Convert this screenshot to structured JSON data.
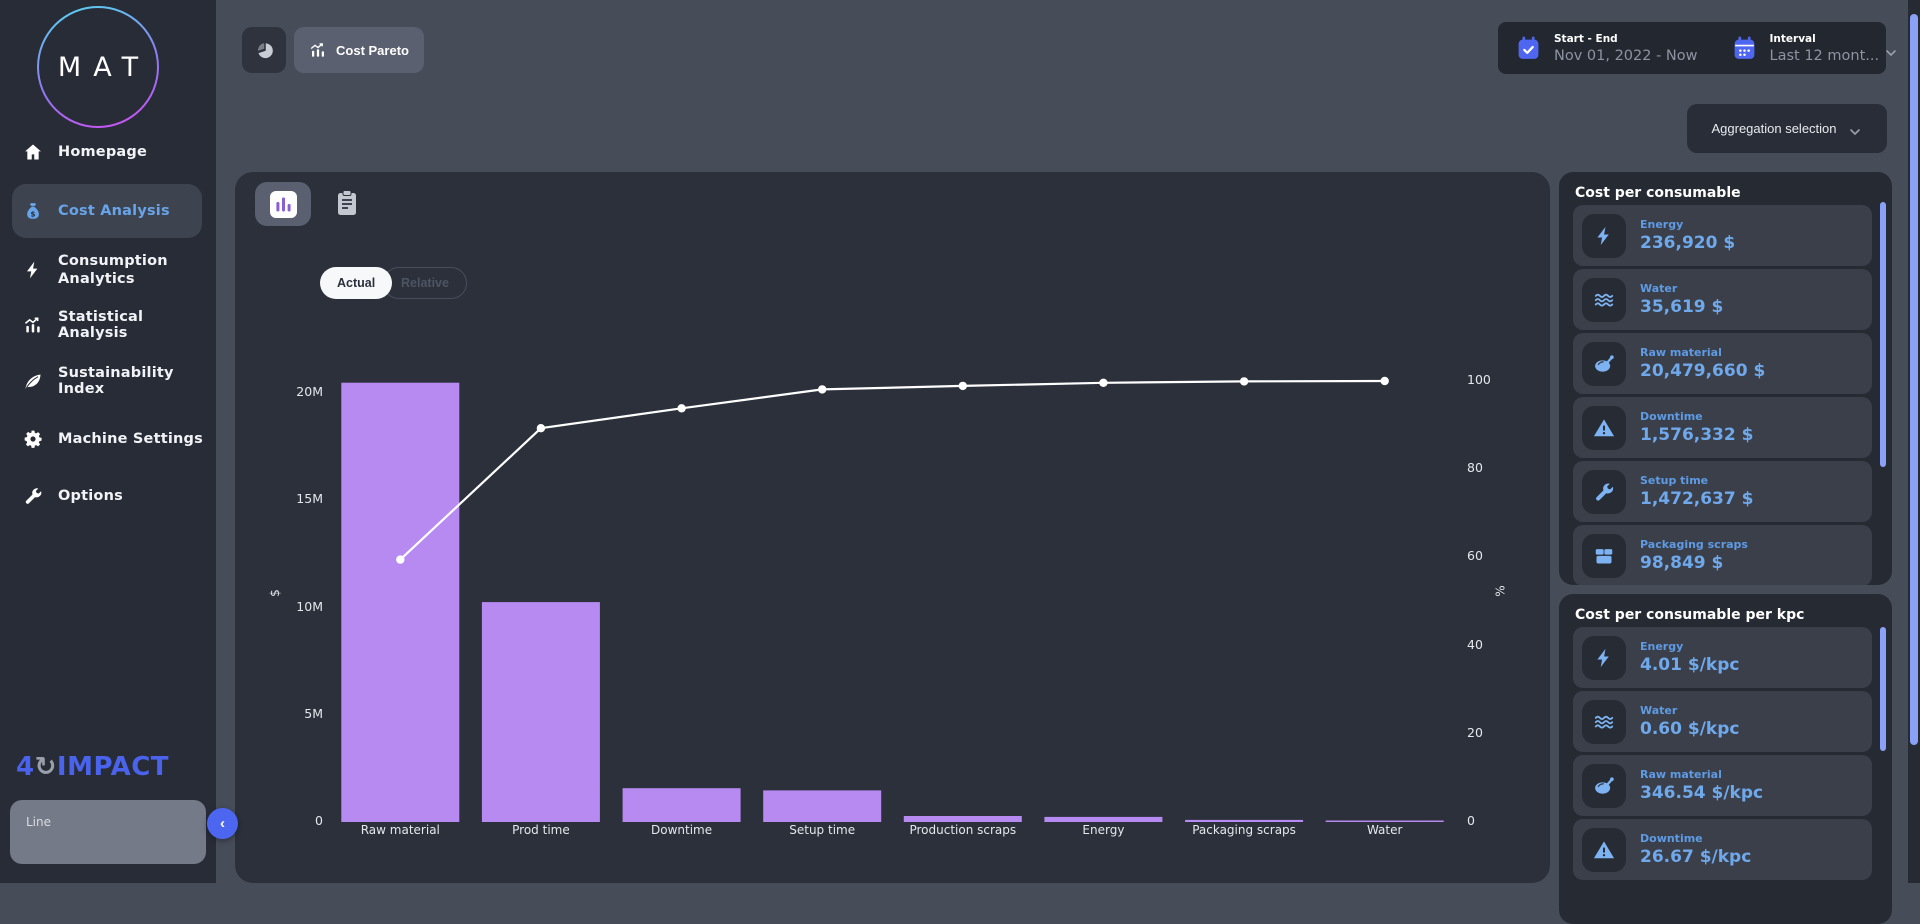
{
  "sidebar": {
    "logo_text": "MAT",
    "items": [
      {
        "label": "Homepage",
        "icon": "home"
      },
      {
        "label": "Cost Analysis",
        "icon": "moneybag",
        "active": true
      },
      {
        "label": "Consumption Analytics",
        "icon": "bolt"
      },
      {
        "label": "Statistical Analysis",
        "icon": "stats"
      },
      {
        "label": "Sustainability Index",
        "icon": "leaf"
      },
      {
        "label": "Machine Settings",
        "icon": "gear"
      },
      {
        "label": "Options",
        "icon": "wrench"
      }
    ],
    "brand_prefix": "4",
    "brand_suffix": "IMPACT",
    "line_panel_label": "Line"
  },
  "toolbar": {
    "pareto_tab_label": "Cost Pareto",
    "date_range": {
      "label": "Start - End",
      "value": "Nov 01, 2022 - Now"
    },
    "interval": {
      "label": "Interval",
      "value": "Last 12 mont..."
    },
    "aggregation_label": "Aggregation selection"
  },
  "chart_card": {
    "toggle_actual": "Actual",
    "toggle_relative": "Relative"
  },
  "chart_data": {
    "type": "pareto (bar + cumulative line)",
    "categories": [
      "Raw material",
      "Prod time",
      "Downtime",
      "Setup time",
      "Production scraps",
      "Energy",
      "Packaging scraps",
      "Water"
    ],
    "bar_values_usd": [
      20479660,
      10250000,
      1576332,
      1472637,
      280000,
      236920,
      98849,
      35619
    ],
    "cumulative_percent": [
      59.5,
      89.3,
      93.8,
      98.1,
      98.9,
      99.6,
      99.9,
      100
    ],
    "left_axis": {
      "label": "$",
      "ticks": [
        "20M",
        "15M",
        "10M",
        "5M",
        "0"
      ],
      "tick_values": [
        20000000,
        15000000,
        10000000,
        5000000,
        0
      ],
      "ylim": [
        0,
        20000000
      ]
    },
    "right_axis": {
      "label": "%",
      "ticks": [
        "100",
        "80",
        "60",
        "40",
        "20",
        "0"
      ],
      "tick_values": [
        100,
        80,
        60,
        40,
        20,
        0
      ],
      "ylim": [
        0,
        100
      ]
    },
    "bar_color": "#b78af2",
    "line_color": "#ffffff",
    "grid": false,
    "legend": "none"
  },
  "cost_panel": {
    "title": "Cost per consumable",
    "items": [
      {
        "name": "Energy",
        "value": "236,920 $",
        "icon": "bolt"
      },
      {
        "name": "Water",
        "value": "35,619 $",
        "icon": "water"
      },
      {
        "name": "Raw material",
        "value": "20,479,660 $",
        "icon": "meat"
      },
      {
        "name": "Downtime",
        "value": "1,576,332 $",
        "icon": "warning"
      },
      {
        "name": "Setup time",
        "value": "1,472,637 $",
        "icon": "wrench"
      },
      {
        "name": "Packaging scraps",
        "value": "98,849 $",
        "icon": "box"
      }
    ]
  },
  "kpc_panel": {
    "title": "Cost per consumable per kpc",
    "items": [
      {
        "name": "Energy",
        "value": "4.01 $/kpc",
        "icon": "bolt"
      },
      {
        "name": "Water",
        "value": "0.60 $/kpc",
        "icon": "water"
      },
      {
        "name": "Raw material",
        "value": "346.54 $/kpc",
        "icon": "meat"
      },
      {
        "name": "Downtime",
        "value": "26.67 $/kpc",
        "icon": "warning"
      }
    ]
  },
  "colors": {
    "sidebar_bg": "#282c37",
    "main_bg": "#474c59",
    "card_bg": "#2b303b",
    "panel_bg": "#262a33",
    "item_bg": "#3a3f4a",
    "accent_blue": "#6fa9ec",
    "bar_purple": "#b78af2",
    "scroll_thumb": "#8ba1f8",
    "icon_blue": "#4f67f0",
    "active_nav": "#68a4e8"
  }
}
